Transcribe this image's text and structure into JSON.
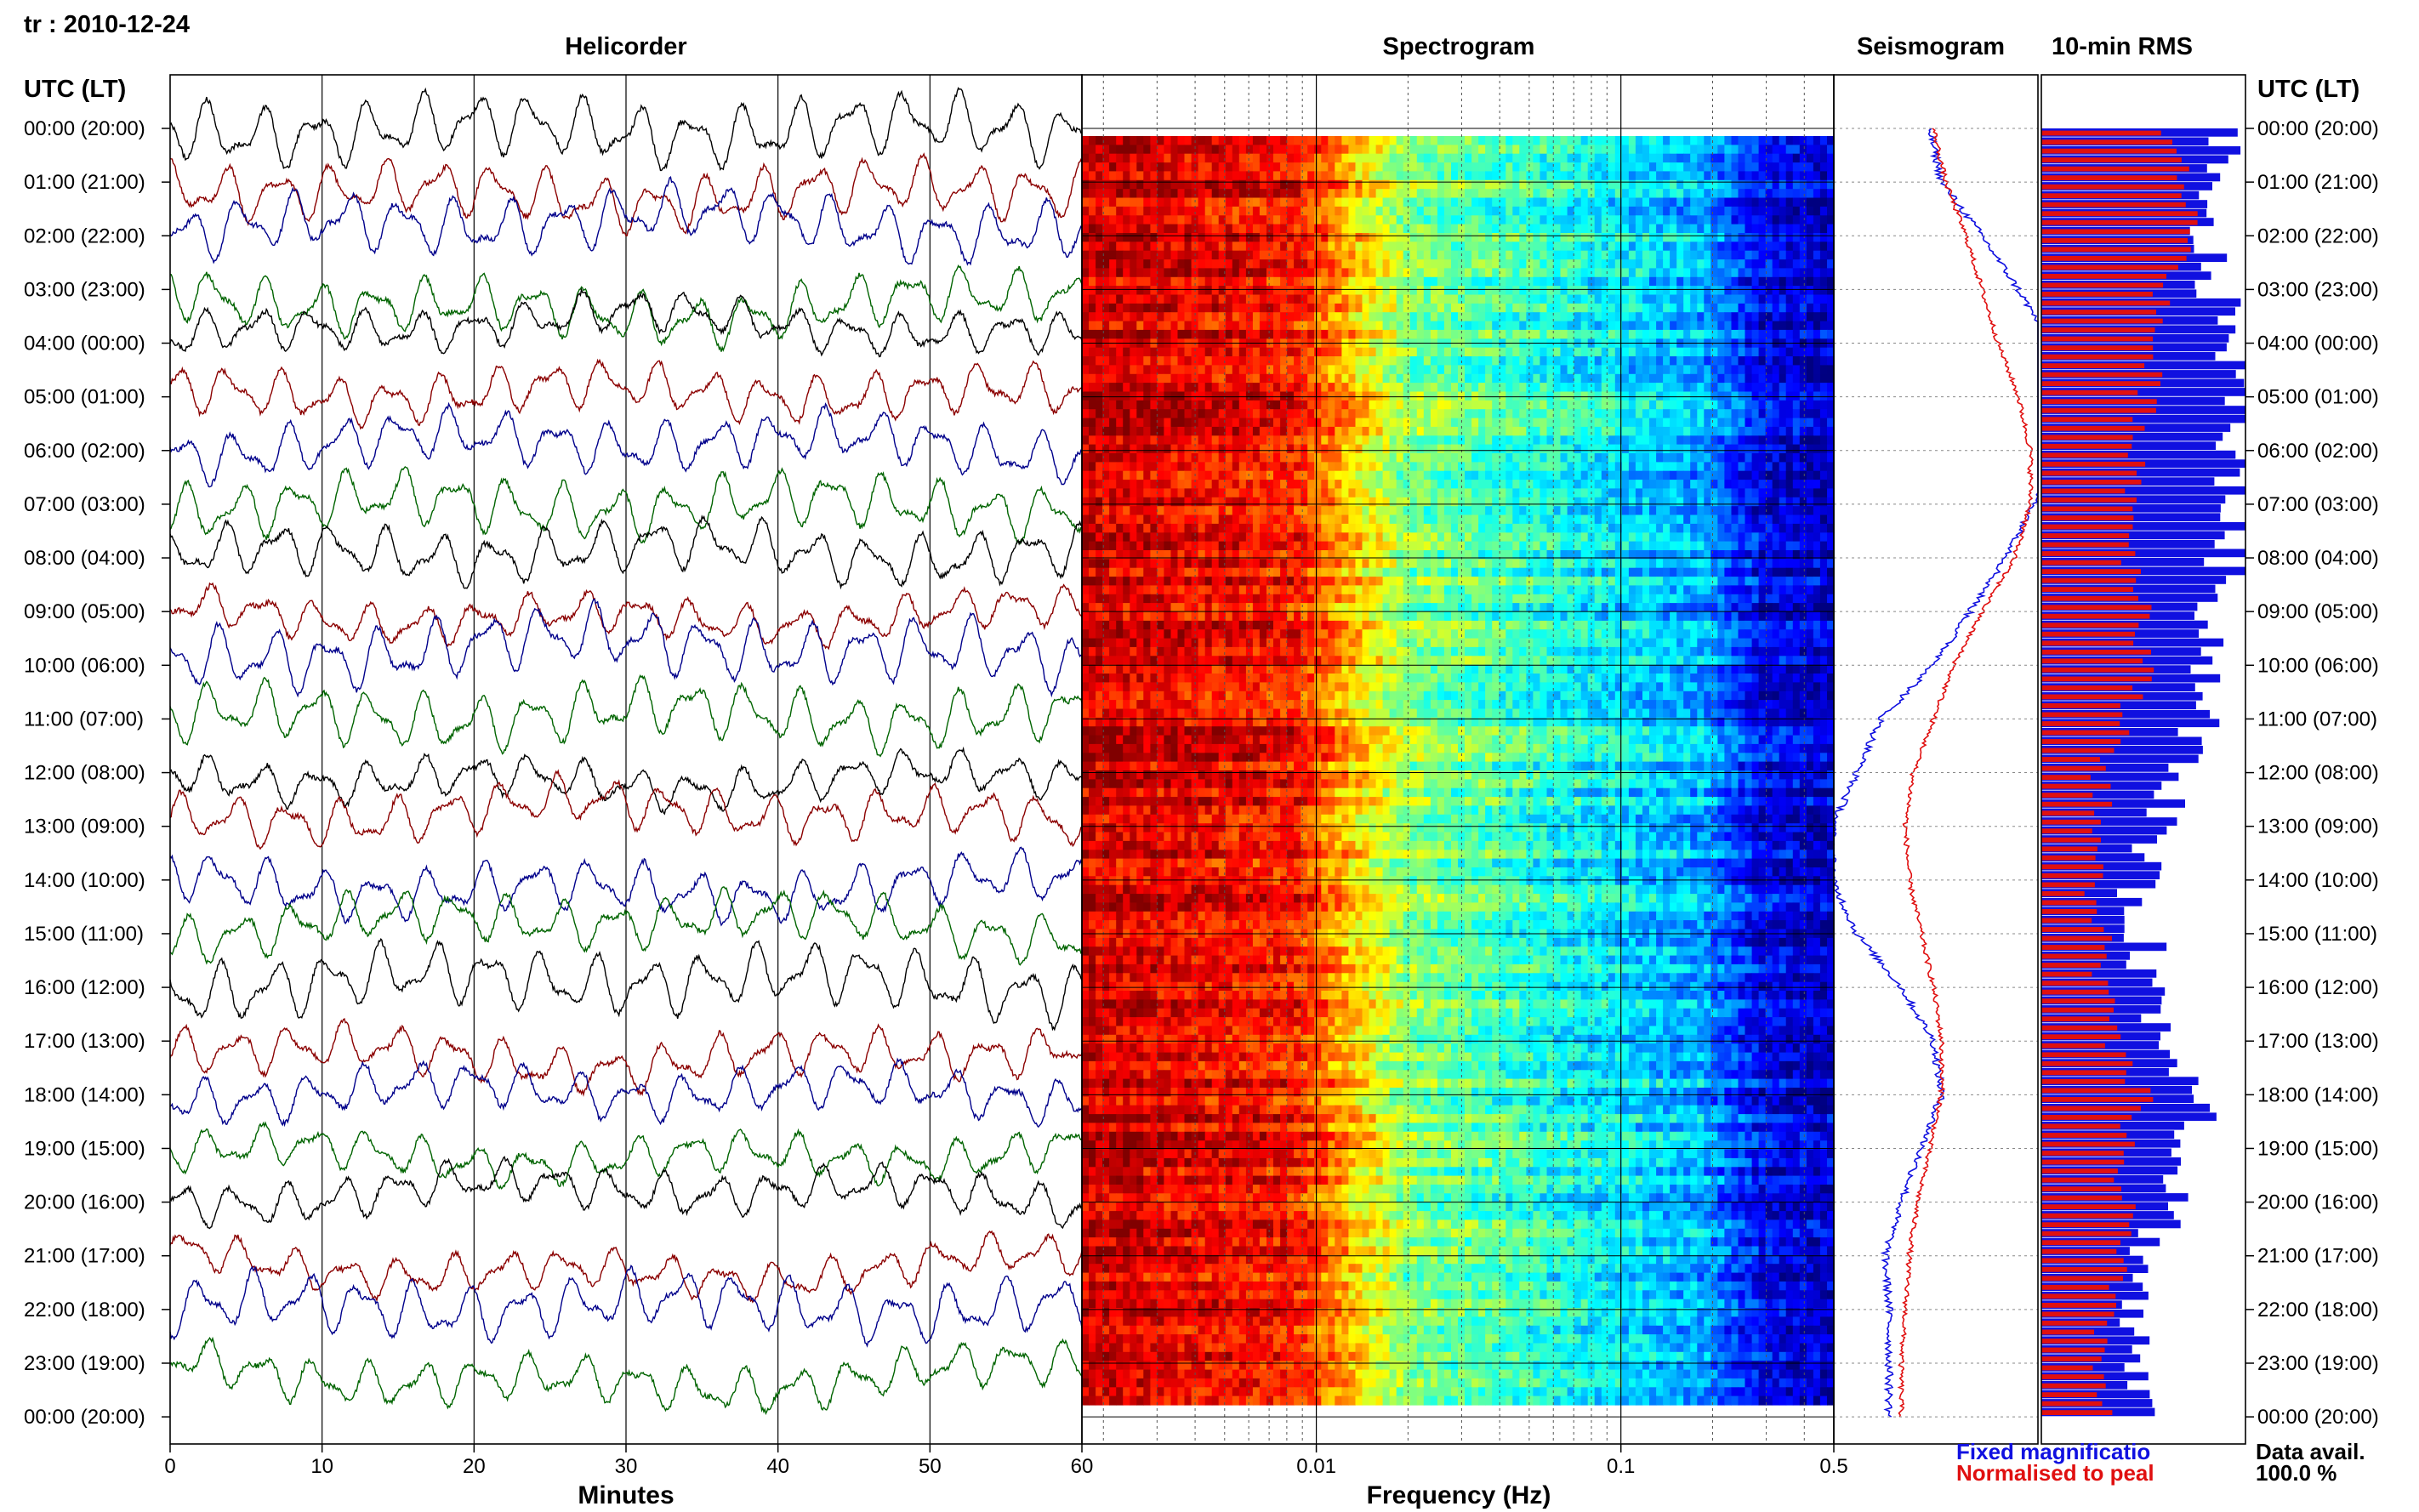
{
  "header": {
    "station_date": "tr : 2010-12-24"
  },
  "colors": {
    "trace_palette": [
      "#000000",
      "#8b0000",
      "#00008b",
      "#006400"
    ],
    "fixed_magnification": "#1010e0",
    "normalised_to_peak": "#e01010"
  },
  "chart_data": [
    {
      "type": "line",
      "title": "Helicorder",
      "xlabel": "Minutes",
      "x_ticks": [
        "0",
        "10",
        "20",
        "30",
        "40",
        "50",
        "60"
      ],
      "xlim": [
        0,
        60
      ],
      "y_axis_label": "UTC (LT)",
      "row_labels": [
        "00:00 (20:00)",
        "01:00 (21:00)",
        "02:00 (22:00)",
        "03:00 (23:00)",
        "04:00 (00:00)",
        "05:00 (01:00)",
        "06:00 (02:00)",
        "07:00 (03:00)",
        "08:00 (04:00)",
        "09:00 (05:00)",
        "10:00 (06:00)",
        "11:00 (07:00)",
        "12:00 (08:00)",
        "13:00 (09:00)",
        "14:00 (10:00)",
        "15:00 (11:00)",
        "16:00 (12:00)",
        "17:00 (13:00)",
        "18:00 (14:00)",
        "19:00 (15:00)",
        "20:00 (16:00)",
        "21:00 (17:00)",
        "22:00 (18:00)",
        "23:00 (19:00)",
        "00:00 (20:00)"
      ],
      "trace_count": 24,
      "grid": "vertical every 10 min"
    },
    {
      "type": "heatmap",
      "title": "Spectrogram",
      "xlabel": "Frequency (Hz)",
      "x_scale": "log",
      "x_ticks": [
        "0.01",
        "0.1",
        "0.5"
      ],
      "xlim": [
        0.0017,
        0.5
      ],
      "rows_hours": 24,
      "colormap": "jet (blue low, red high)",
      "dominant_energy": "red at lowest frequencies below 0.01 Hz, yellow to cyan 0.01-0.3 Hz, dark blue above 0.3 Hz"
    },
    {
      "type": "line",
      "title": "Seismogram",
      "description_series": [
        {
          "name": "Fixed magnification",
          "color": "#1010e0",
          "hours": [
            0,
            1,
            2,
            3,
            4,
            5,
            6,
            7,
            8,
            9,
            10,
            11,
            12,
            13,
            14,
            15,
            16,
            17,
            18,
            19,
            20,
            21,
            22,
            23,
            24
          ],
          "level": [
            0.3,
            0.45,
            0.95,
            1.4,
            1.8,
            2.0,
            1.9,
            1.6,
            1.25,
            0.8,
            0.35,
            -0.3,
            -0.6,
            -0.9,
            -0.9,
            -0.6,
            -0.05,
            0.35,
            0.45,
            0.2,
            -0.05,
            -0.25,
            -0.2,
            -0.2,
            -0.2
          ]
        },
        {
          "name": "Normalised to peak",
          "color": "#e01010",
          "hours": [
            0,
            1,
            2,
            3,
            4,
            5,
            6,
            7,
            8,
            9,
            10,
            11,
            12,
            13,
            14,
            15,
            16,
            17,
            18,
            19,
            20,
            21,
            22,
            23,
            24
          ],
          "level": [
            0.35,
            0.5,
            0.75,
            0.95,
            1.15,
            1.4,
            1.55,
            1.55,
            1.35,
            0.95,
            0.6,
            0.35,
            0.1,
            0.0,
            0.05,
            0.2,
            0.35,
            0.45,
            0.45,
            0.3,
            0.15,
            0.05,
            0.0,
            -0.05,
            -0.05
          ]
        }
      ],
      "legend": [
        "Fixed magnificatio",
        "Normalised to peal"
      ]
    },
    {
      "type": "bar",
      "title": "10-min RMS",
      "orientation": "horizontal",
      "bins_per_hour": 6,
      "series": [
        {
          "name": "Fixed magnification",
          "color": "#1010e0",
          "hourly_level": [
            0.95,
            0.75,
            0.8,
            0.85,
            0.95,
            0.95,
            0.95,
            0.95,
            0.9,
            0.85,
            0.82,
            0.8,
            0.62,
            0.6,
            0.45,
            0.5,
            0.55,
            0.6,
            0.85,
            0.7,
            0.65,
            0.5,
            0.45,
            0.45
          ]
        },
        {
          "name": "Normalised to peak",
          "color": "#e01010",
          "hourly_level": [
            0.6,
            0.72,
            0.75,
            0.6,
            0.55,
            0.52,
            0.48,
            0.45,
            0.45,
            0.52,
            0.5,
            0.42,
            0.3,
            0.28,
            0.25,
            0.3,
            0.3,
            0.35,
            0.5,
            0.38,
            0.42,
            0.38,
            0.3,
            0.3
          ]
        }
      ],
      "data_availability_label": "Data avail.",
      "data_availability_value": "100.0 %"
    }
  ]
}
